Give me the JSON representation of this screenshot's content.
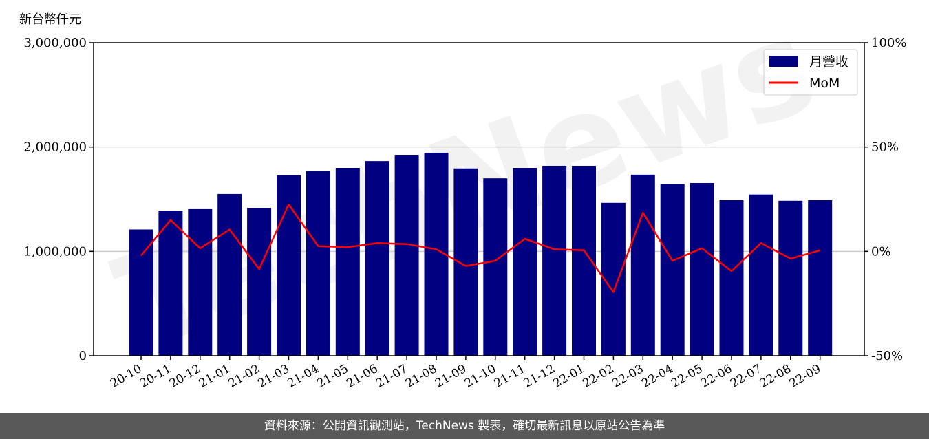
{
  "chart_data": {
    "type": "bar",
    "ylabel": "新台幣仟元",
    "categories": [
      "20-10",
      "20-11",
      "20-12",
      "21-01",
      "21-02",
      "21-03",
      "21-04",
      "21-05",
      "21-06",
      "21-07",
      "21-08",
      "21-09",
      "21-10",
      "21-11",
      "21-12",
      "22-01",
      "22-02",
      "22-03",
      "22-04",
      "22-05",
      "22-06",
      "22-07",
      "22-08",
      "22-09"
    ],
    "series": [
      {
        "name": "月營收",
        "kind": "bar",
        "axis": "left",
        "color": "#000080",
        "values": [
          1210000,
          1390000,
          1405000,
          1550000,
          1415000,
          1730000,
          1770000,
          1800000,
          1865000,
          1925000,
          1945000,
          1795000,
          1700000,
          1800000,
          1820000,
          1820000,
          1465000,
          1735000,
          1645000,
          1655000,
          1490000,
          1545000,
          1485000,
          1490000
        ]
      },
      {
        "name": "MoM",
        "kind": "line",
        "axis": "right",
        "color": "#ff0000",
        "values": [
          -2,
          15,
          1.5,
          10.5,
          -8.5,
          22.5,
          2.5,
          2,
          4,
          3.5,
          1,
          -7,
          -4.5,
          6,
          1,
          0.5,
          -19.5,
          18.5,
          -4.5,
          1.5,
          -9.5,
          4,
          -3.5,
          0.5
        ]
      }
    ],
    "y_left": {
      "ylim": [
        0,
        3000000
      ],
      "ticks": [
        0,
        1000000,
        2000000,
        3000000
      ],
      "tick_labels": [
        "0",
        "1,000,000",
        "2,000,000",
        "3,000,000"
      ]
    },
    "y_right": {
      "ylim": [
        -50,
        100
      ],
      "ticks": [
        -50,
        0,
        50,
        100
      ],
      "tick_labels": [
        "-50%",
        "0%",
        "50%",
        "100%"
      ]
    },
    "grid": "horizontal",
    "legend": "top-right"
  },
  "watermark": "TechNews",
  "footer": "資料來源：公開資訊觀測站，TechNews 製表，確切最新訊息以原站公告為準"
}
